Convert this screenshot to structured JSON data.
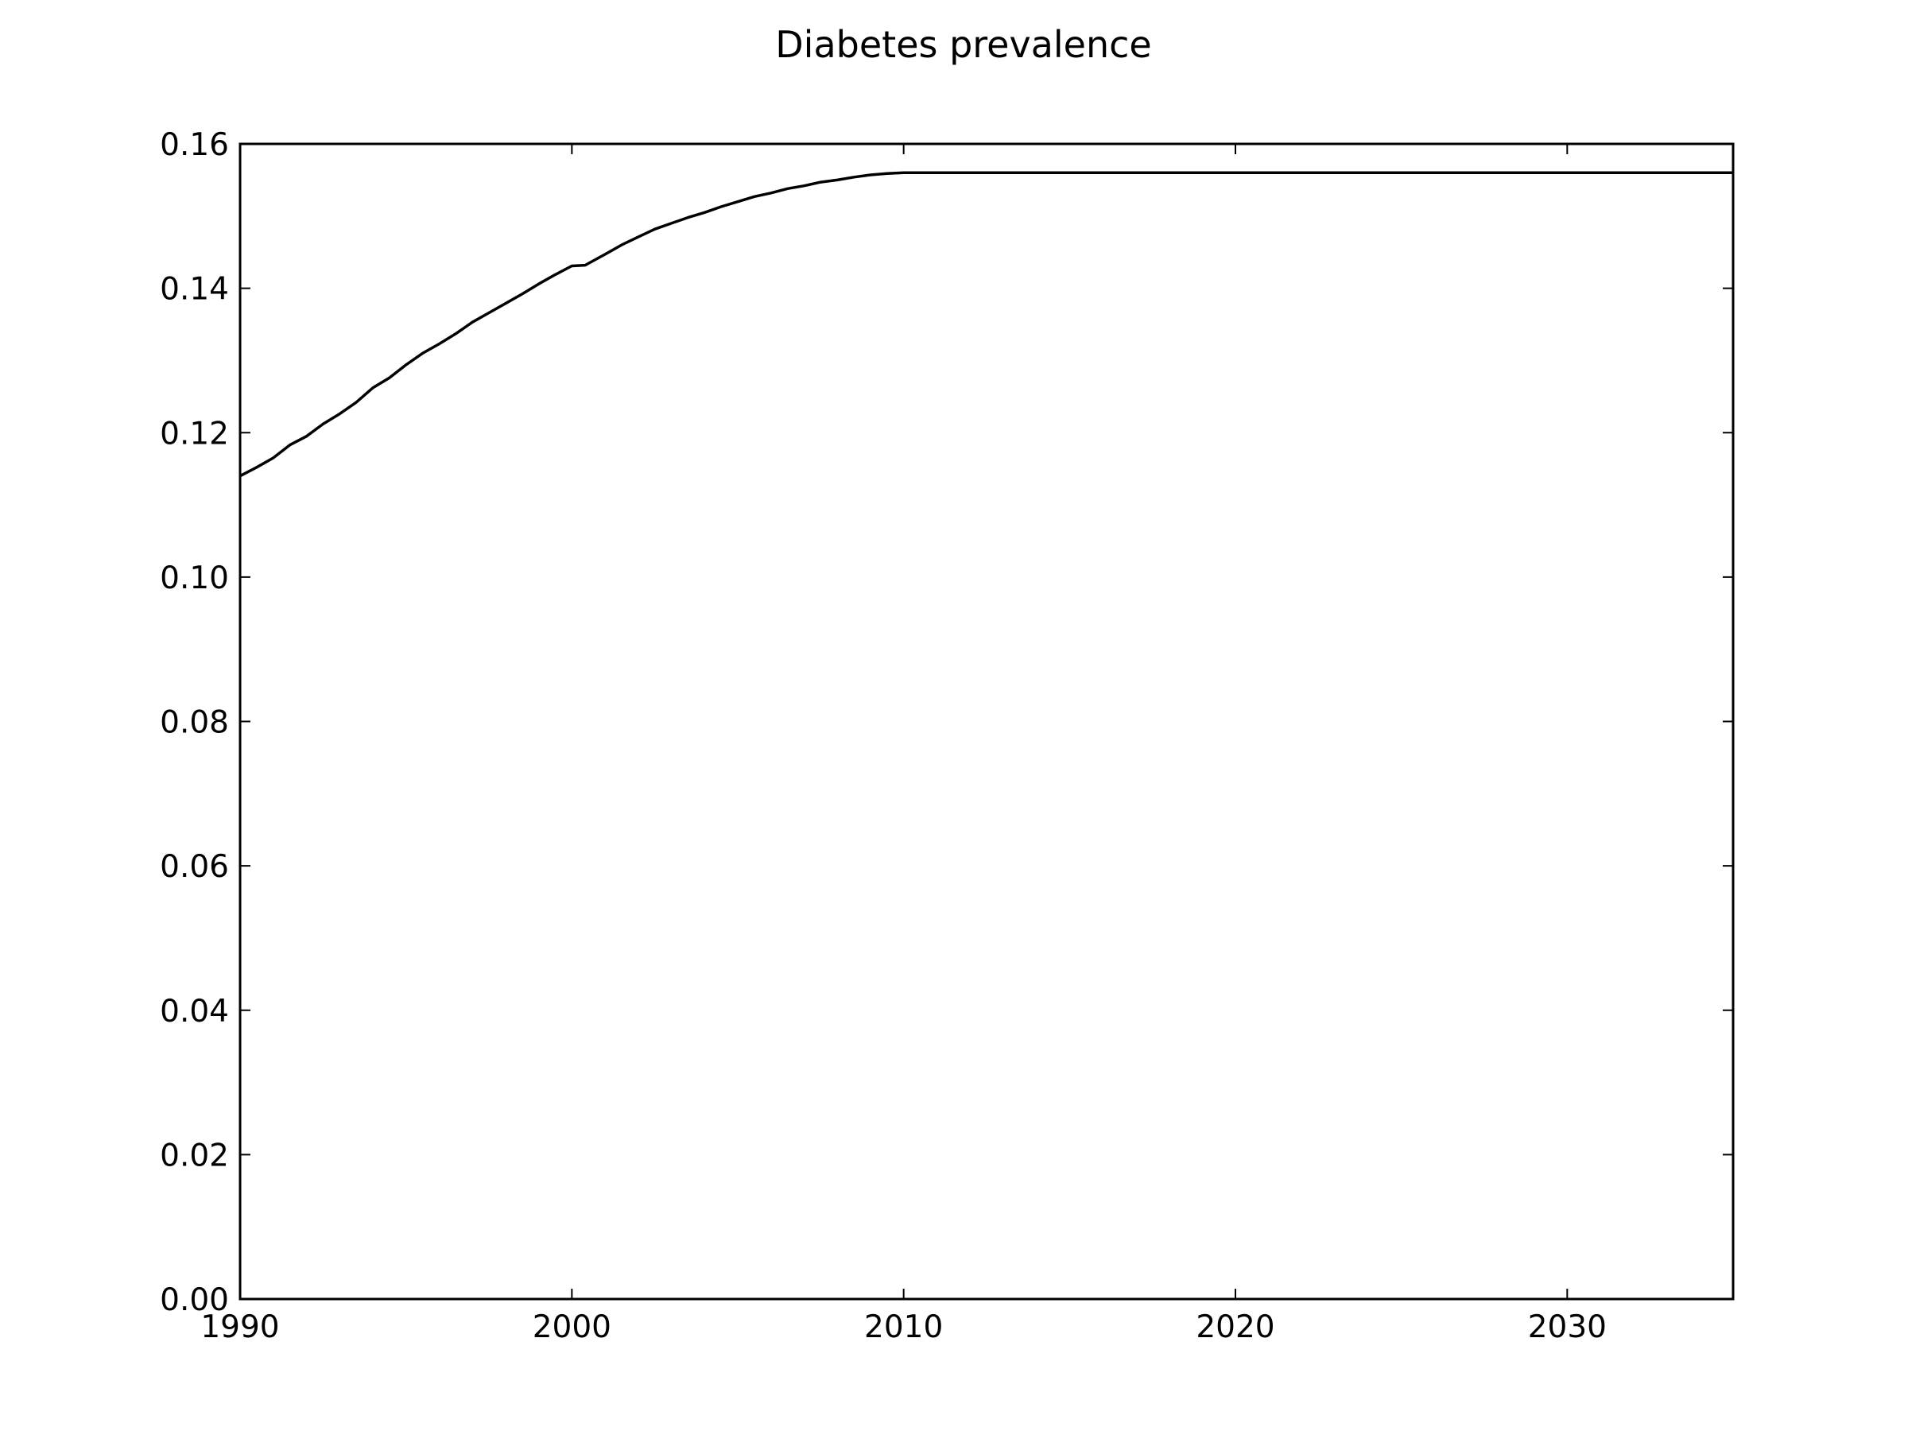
{
  "chart_data": {
    "type": "line",
    "title": "Diabetes prevalence",
    "xlabel": "",
    "ylabel": "",
    "xlim": [
      1990,
      2035
    ],
    "ylim": [
      0,
      0.16
    ],
    "x_ticks": [
      1990,
      2000,
      2010,
      2020,
      2030
    ],
    "x_tick_labels": [
      "1990",
      "2000",
      "2010",
      "2020",
      "2030"
    ],
    "y_ticks": [
      0,
      0.02,
      0.04,
      0.06,
      0.08,
      0.1,
      0.12,
      0.14,
      0.16
    ],
    "y_tick_labels": [
      "0.00",
      "0.02",
      "0.04",
      "0.06",
      "0.08",
      "0.10",
      "0.12",
      "0.14",
      "0.16"
    ],
    "grid": false,
    "legend": "none",
    "line_color": "#000000",
    "series": [
      {
        "x": [
          1990,
          1990.5,
          1991,
          1991.5,
          1992,
          1992.5,
          1993,
          1993.5,
          1994,
          1994.5,
          1995,
          1995.5,
          1996,
          1996.5,
          1997,
          1997.5,
          1998,
          1998.5,
          1999,
          1999.5,
          2000,
          2000.4,
          2001,
          2001.5,
          2002,
          2002.5,
          2003,
          2003.5,
          2004,
          2004.5,
          2005,
          2005.5,
          2006,
          2006.5,
          2007,
          2007.5,
          2008,
          2008.5,
          2009,
          2009.5,
          2010,
          2011,
          2012,
          2015,
          2020,
          2025,
          2030,
          2035
        ],
        "y": [
          0.114,
          0.1152,
          0.1165,
          0.1183,
          0.1195,
          0.1212,
          0.1226,
          0.1242,
          0.1262,
          0.1276,
          0.1294,
          0.131,
          0.1323,
          0.1337,
          0.1353,
          0.1366,
          0.1379,
          0.1392,
          0.1406,
          0.1419,
          0.1431,
          0.1432,
          0.1447,
          0.146,
          0.1471,
          0.1482,
          0.149,
          0.1498,
          0.1505,
          0.1513,
          0.152,
          0.1527,
          0.1532,
          0.1538,
          0.1542,
          0.1547,
          0.155,
          0.1554,
          0.1557,
          0.1559,
          0.156,
          0.156,
          0.156,
          0.156,
          0.156,
          0.156,
          0.156,
          0.156
        ]
      }
    ]
  }
}
